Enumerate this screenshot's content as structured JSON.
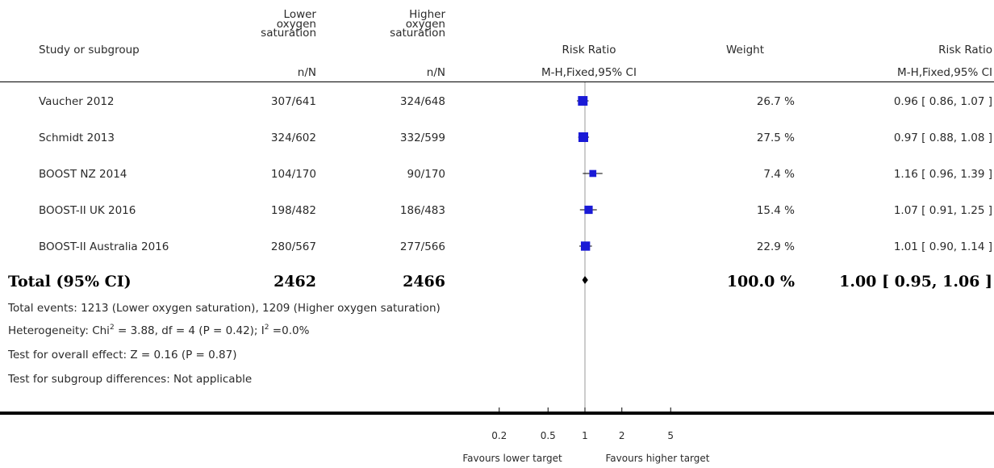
{
  "header": {
    "study_col": "Study or subgroup",
    "group1_line1": "Lower",
    "group1_line2": "oxygen",
    "group1_line3": "saturation",
    "group2_line1": "Higher",
    "group2_line2": "oxygen",
    "group2_line3": "saturation",
    "plot_title": "Risk Ratio",
    "weight": "Weight",
    "ratio_title": "Risk Ratio",
    "group1_unit": "n/N",
    "group2_unit": "n/N",
    "plot_method": "M-H,Fixed,95% CI",
    "ratio_method": "M-H,Fixed,95% CI"
  },
  "studies": [
    {
      "name": "Vaucher 2012",
      "g1": "307/641",
      "g2": "324/648",
      "weight": "26.7 %",
      "ci": "0.96 [ 0.86, 1.07 ]"
    },
    {
      "name": "Schmidt 2013",
      "g1": "324/602",
      "g2": "332/599",
      "weight": "27.5 %",
      "ci": "0.97 [ 0.88, 1.08 ]"
    },
    {
      "name": "BOOST NZ 2014",
      "g1": "104/170",
      "g2": "90/170",
      "weight": "7.4 %",
      "ci": "1.16 [ 0.96, 1.39 ]"
    },
    {
      "name": "BOOST-II UK 2016",
      "g1": "198/482",
      "g2": "186/483",
      "weight": "15.4 %",
      "ci": "1.07 [ 0.91, 1.25 ]"
    },
    {
      "name": "BOOST-II Australia 2016",
      "g1": "280/567",
      "g2": "277/566",
      "weight": "22.9 %",
      "ci": "1.01 [ 0.90, 1.14 ]"
    }
  ],
  "total": {
    "label": "Total (95% CI)",
    "g1": "2462",
    "g2": "2466",
    "weight": "100.0 %",
    "ci": "1.00 [ 0.95, 1.06 ]"
  },
  "footnotes": {
    "events": "Total events: 1213 (Lower oxygen saturation), 1209 (Higher oxygen saturation)",
    "heterogeneity_a": "Heterogeneity: Chi",
    "heterogeneity_b": "2",
    "heterogeneity_c": " = 3.88, df = 4 (P = 0.42); I",
    "heterogeneity_d": "2",
    "heterogeneity_e": " =0.0%",
    "overall": "Test for overall effect: Z = 0.16 (P = 0.87)",
    "subgroup": "Test for subgroup differences: Not applicable"
  },
  "axis": {
    "favours_left": "Favours lower target",
    "favours_right": "Favours higher target"
  },
  "colors": {
    "marker": "#1a1ad6",
    "line": "#000000",
    "ref_line": "#9a9a9a"
  },
  "chart_data": {
    "type": "scatter",
    "scale": "log",
    "x_ticks": [
      0.2,
      0.5,
      1,
      2,
      5
    ],
    "x_tick_labels": [
      "0.2",
      "0.5",
      "1",
      "2",
      "5"
    ],
    "reference_value": 1,
    "series": [
      {
        "label": "Vaucher 2012",
        "estimate": 0.96,
        "lower": 0.86,
        "upper": 1.07,
        "weight": 26.7
      },
      {
        "label": "Schmidt 2013",
        "estimate": 0.97,
        "lower": 0.88,
        "upper": 1.08,
        "weight": 27.5
      },
      {
        "label": "BOOST NZ 2014",
        "estimate": 1.16,
        "lower": 0.96,
        "upper": 1.39,
        "weight": 7.4
      },
      {
        "label": "BOOST-II UK 2016",
        "estimate": 1.07,
        "lower": 0.91,
        "upper": 1.25,
        "weight": 15.4
      },
      {
        "label": "BOOST-II Australia 2016",
        "estimate": 1.01,
        "lower": 0.9,
        "upper": 1.14,
        "weight": 22.9
      }
    ],
    "pooled": {
      "label": "Total (95% CI)",
      "estimate": 1.0,
      "lower": 0.95,
      "upper": 1.06,
      "weight": 100.0
    }
  }
}
